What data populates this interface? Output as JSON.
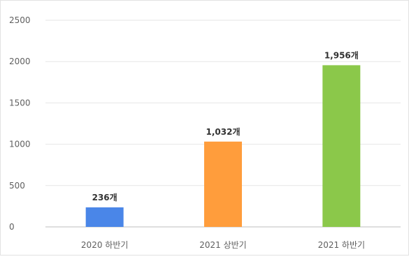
{
  "chart_data": {
    "type": "bar",
    "categories": [
      "2020 하반기",
      "2021 상반기",
      "2021 하반기"
    ],
    "values": [
      236,
      1032,
      1956
    ],
    "data_labels": [
      "236개",
      "1,032개",
      "1,956개"
    ],
    "colors": [
      "#4a86e8",
      "#ff9d3c",
      "#8bc84a"
    ],
    "ylim": [
      0,
      2500
    ],
    "yticks": [
      0,
      500,
      1000,
      1500,
      2000,
      2500
    ],
    "grid": true,
    "legend": "none"
  }
}
